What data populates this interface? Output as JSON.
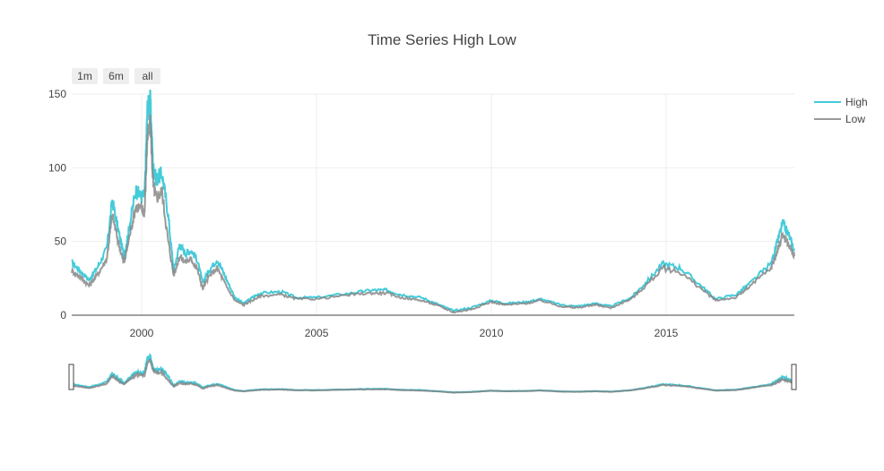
{
  "chart_data": {
    "type": "line",
    "title": "Time Series High Low",
    "xlabel": "",
    "ylabel": "",
    "x_range": [
      "1998-01-01",
      "2018-09-01"
    ],
    "ylim": [
      0,
      150
    ],
    "y_ticks": [
      0,
      50,
      100,
      150
    ],
    "x_ticks": [
      "2000",
      "2005",
      "2010",
      "2015"
    ],
    "grid": true,
    "legend": "top-right",
    "range_selector": [
      "1m",
      "6m",
      "all"
    ],
    "range_slider": true,
    "series": [
      {
        "name": "High",
        "color": "#17BECF",
        "x": [
          "1998-01-01",
          "1998-04-01",
          "1998-07-01",
          "1998-10-01",
          "1999-01-01",
          "1999-03-01",
          "1999-05-01",
          "1999-07-01",
          "1999-09-01",
          "1999-11-01",
          "2000-01-01",
          "2000-02-01",
          "2000-03-01",
          "2000-04-01",
          "2000-05-01",
          "2000-06-01",
          "2000-08-01",
          "2000-10-01",
          "2000-12-01",
          "2001-02-01",
          "2001-04-01",
          "2001-06-01",
          "2001-08-01",
          "2001-10-01",
          "2001-12-01",
          "2002-03-01",
          "2002-06-01",
          "2002-09-01",
          "2002-12-01",
          "2003-03-01",
          "2003-06-01",
          "2004-01-01",
          "2004-06-01",
          "2005-01-01",
          "2006-01-01",
          "2006-08-01",
          "2007-01-01",
          "2007-06-01",
          "2008-01-01",
          "2008-06-01",
          "2008-12-01",
          "2009-06-01",
          "2010-01-01",
          "2010-06-01",
          "2011-01-01",
          "2011-06-01",
          "2012-01-01",
          "2012-06-01",
          "2013-01-01",
          "2013-06-01",
          "2014-01-01",
          "2014-06-01",
          "2014-12-01",
          "2015-06-01",
          "2016-01-01",
          "2016-06-01",
          "2017-01-01",
          "2017-06-01",
          "2018-01-01",
          "2018-03-01",
          "2018-05-01",
          "2018-07-01",
          "2018-09-01"
        ],
        "values": [
          36,
          30,
          24,
          33,
          45,
          78,
          58,
          40,
          62,
          85,
          80,
          82,
          140,
          145,
          100,
          92,
          96,
          70,
          30,
          48,
          42,
          44,
          38,
          22,
          30,
          38,
          25,
          12,
          8,
          12,
          15,
          16,
          12,
          12,
          15,
          17,
          17,
          14,
          12,
          8,
          3,
          5,
          10,
          8,
          9,
          11,
          7,
          6,
          8,
          6,
          12,
          22,
          35,
          32,
          20,
          11,
          14,
          22,
          35,
          48,
          62,
          55,
          44
        ]
      },
      {
        "name": "Low",
        "color": "#7F7F7F",
        "x": [
          "1998-01-01",
          "1998-04-01",
          "1998-07-01",
          "1998-10-01",
          "1999-01-01",
          "1999-03-01",
          "1999-05-01",
          "1999-07-01",
          "1999-09-01",
          "1999-11-01",
          "2000-01-01",
          "2000-02-01",
          "2000-03-01",
          "2000-04-01",
          "2000-05-01",
          "2000-06-01",
          "2000-08-01",
          "2000-10-01",
          "2000-12-01",
          "2001-02-01",
          "2001-04-01",
          "2001-06-01",
          "2001-08-01",
          "2001-10-01",
          "2001-12-01",
          "2002-03-01",
          "2002-06-01",
          "2002-09-01",
          "2002-12-01",
          "2003-03-01",
          "2003-06-01",
          "2004-01-01",
          "2004-06-01",
          "2005-01-01",
          "2006-01-01",
          "2006-08-01",
          "2007-01-01",
          "2007-06-01",
          "2008-01-01",
          "2008-06-01",
          "2008-12-01",
          "2009-06-01",
          "2010-01-01",
          "2010-06-01",
          "2011-01-01",
          "2011-06-01",
          "2012-01-01",
          "2012-06-01",
          "2013-01-01",
          "2013-06-01",
          "2014-01-01",
          "2014-06-01",
          "2014-12-01",
          "2015-06-01",
          "2016-01-01",
          "2016-06-01",
          "2017-01-01",
          "2017-06-01",
          "2018-01-01",
          "2018-03-01",
          "2018-05-01",
          "2018-07-01",
          "2018-09-01"
        ],
        "values": [
          30,
          26,
          20,
          28,
          38,
          68,
          50,
          35,
          55,
          74,
          72,
          70,
          120,
          130,
          88,
          80,
          84,
          52,
          27,
          40,
          36,
          38,
          32,
          18,
          26,
          32,
          20,
          10,
          7,
          10,
          13,
          14,
          11,
          11,
          14,
          15,
          15,
          12,
          10,
          7,
          2,
          4,
          9,
          7,
          8,
          10,
          6,
          5,
          7,
          5,
          11,
          20,
          32,
          29,
          18,
          10,
          12,
          20,
          32,
          42,
          55,
          48,
          40
        ]
      }
    ]
  }
}
